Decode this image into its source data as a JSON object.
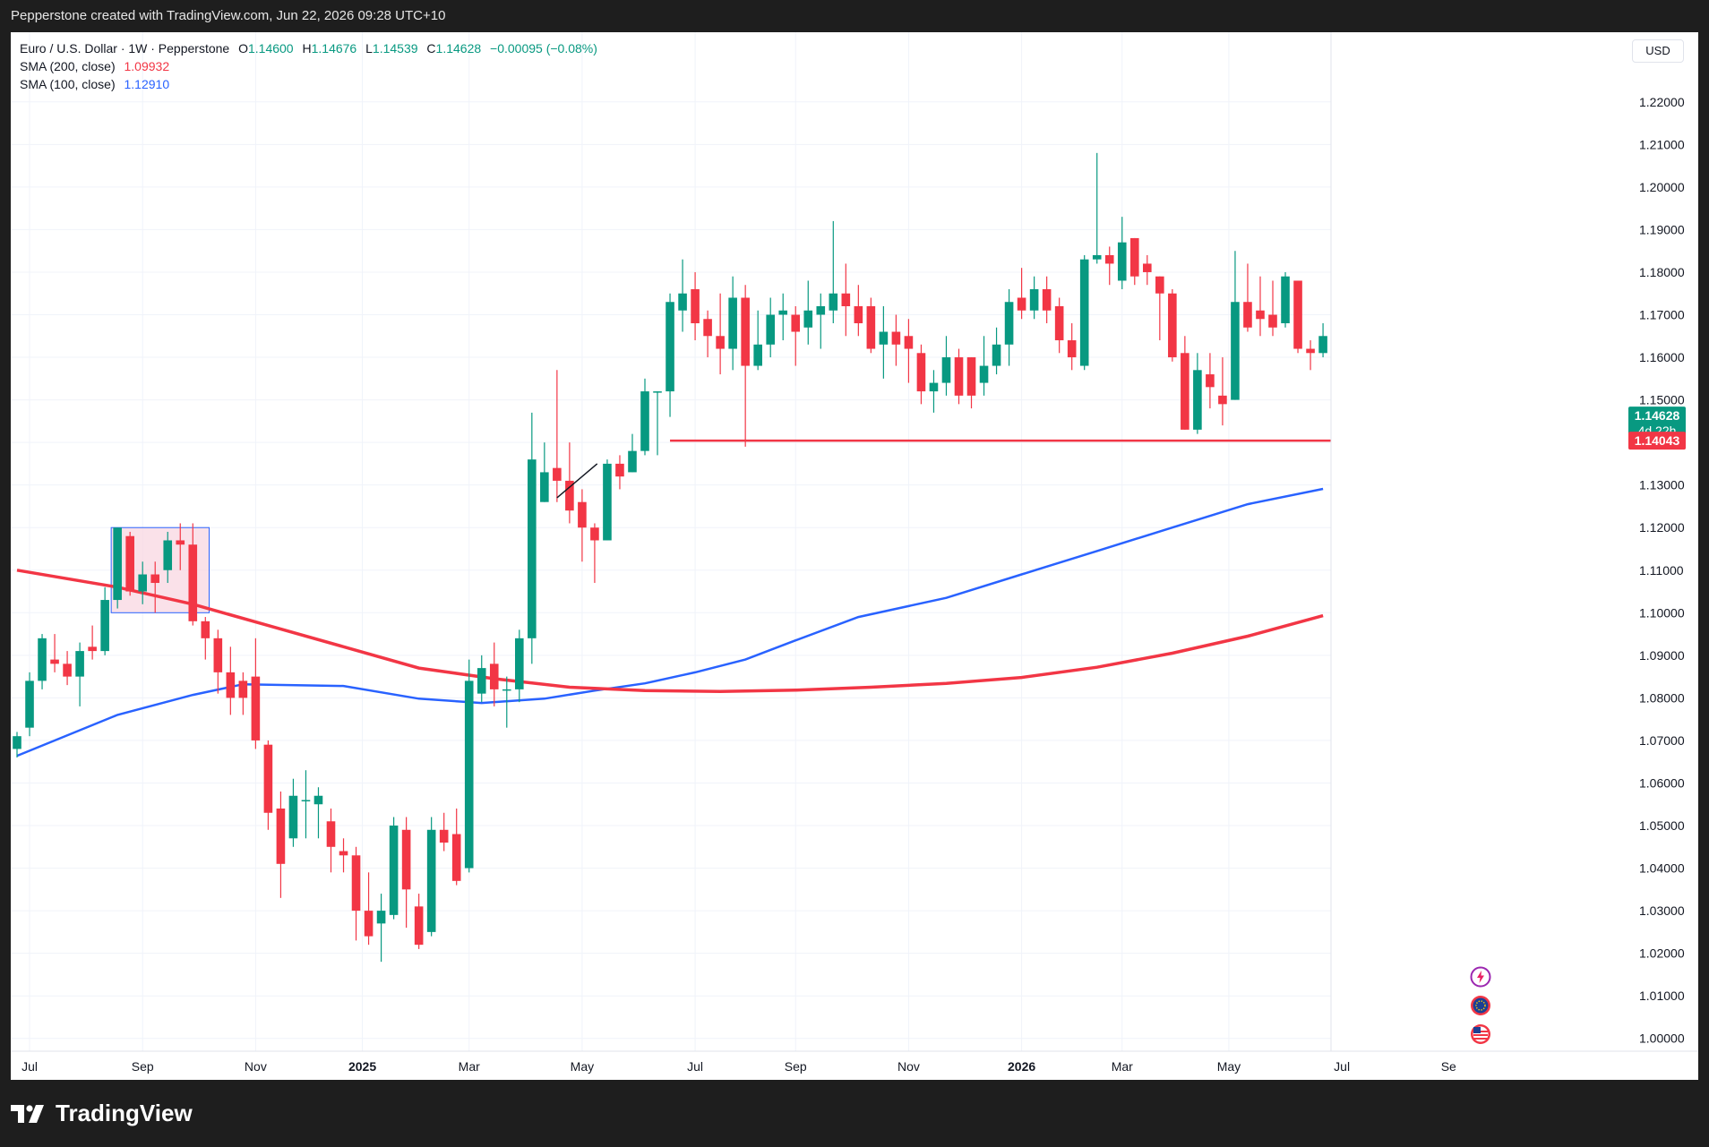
{
  "header": {
    "attribution": "Pepperstone created with TradingView.com, Jun 22, 2026 09:28 UTC+10"
  },
  "brand": {
    "name": "TradingView"
  },
  "legend": {
    "symbol": "Euro / U.S. Dollar · 1W · Pepperstone",
    "ohlc": {
      "o_label": "O",
      "o": "1.14600",
      "h_label": "H",
      "h": "1.14676",
      "l_label": "L",
      "l": "1.14539",
      "c_label": "C",
      "c": "1.14628",
      "change": "−0.00095 (−0.08%)"
    },
    "sma200": {
      "label": "SMA (200, close)",
      "value": "1.09932"
    },
    "sma100": {
      "label": "SMA (100, close)",
      "value": "1.12910"
    }
  },
  "currency": "USD",
  "price_labels": {
    "last": "1.14628",
    "countdown": "4d 22h",
    "level": "1.14043"
  },
  "events": {
    "icons": [
      "flash-event-icon",
      "eu-flag-icon",
      "us-flag-icon"
    ]
  },
  "colors": {
    "up": "#089981",
    "down": "#f23645",
    "sma200": "#f23645",
    "sma100": "#2962ff",
    "hline": "#f23645",
    "box_fill": "#f8d7e1",
    "box_border": "#2962ff",
    "trendline": "#131722"
  },
  "chart_data": {
    "type": "candlestick",
    "timeframe": "1W",
    "ylim": [
      0.997,
      1.229
    ],
    "x_ticks": [
      {
        "label": "Jul",
        "bold": false,
        "time": 1
      },
      {
        "label": "Sep",
        "bold": false,
        "time": 10
      },
      {
        "label": "Nov",
        "bold": false,
        "time": 19
      },
      {
        "label": "2025",
        "bold": true,
        "time": 27.5
      },
      {
        "label": "Mar",
        "bold": false,
        "time": 36
      },
      {
        "label": "May",
        "bold": false,
        "time": 45
      },
      {
        "label": "Jul",
        "bold": false,
        "time": 54
      },
      {
        "label": "Sep",
        "bold": false,
        "time": 62
      },
      {
        "label": "Nov",
        "bold": false,
        "time": 71
      },
      {
        "label": "2026",
        "bold": true,
        "time": 80
      },
      {
        "label": "Mar",
        "bold": false,
        "time": 88
      },
      {
        "label": "May",
        "bold": false,
        "time": 96.5
      },
      {
        "label": "Jul",
        "bold": false,
        "time": 105.5
      },
      {
        "label": "Se",
        "bold": false,
        "time": 114
      }
    ],
    "y_ticks": [
      "1.22000",
      "1.21000",
      "1.20000",
      "1.19000",
      "1.18000",
      "1.17000",
      "1.16000",
      "1.15000",
      "1.14000",
      "1.13000",
      "1.12000",
      "1.11000",
      "1.10000",
      "1.09000",
      "1.08000",
      "1.07000",
      "1.06000",
      "1.05000",
      "1.04000",
      "1.03000",
      "1.02000",
      "1.01000",
      "1.00000"
    ],
    "candles": [
      [
        1.068,
        1.071,
        1.066,
        1.072
      ],
      [
        1.073,
        1.084,
        1.071,
        1.086
      ],
      [
        1.084,
        1.094,
        1.082,
        1.095
      ],
      [
        1.089,
        1.088,
        1.086,
        1.095
      ],
      [
        1.088,
        1.085,
        1.083,
        1.091
      ],
      [
        1.085,
        1.091,
        1.078,
        1.093
      ],
      [
        1.092,
        1.091,
        1.089,
        1.097
      ],
      [
        1.091,
        1.103,
        1.09,
        1.106
      ],
      [
        1.103,
        1.12,
        1.101,
        1.12
      ],
      [
        1.118,
        1.105,
        1.104,
        1.119
      ],
      [
        1.105,
        1.109,
        1.102,
        1.112
      ],
      [
        1.109,
        1.107,
        1.1,
        1.112
      ],
      [
        1.11,
        1.117,
        1.107,
        1.119
      ],
      [
        1.117,
        1.116,
        1.11,
        1.121
      ],
      [
        1.116,
        1.098,
        1.097,
        1.121
      ],
      [
        1.098,
        1.094,
        1.089,
        1.099
      ],
      [
        1.094,
        1.086,
        1.081,
        1.096
      ],
      [
        1.086,
        1.08,
        1.076,
        1.092
      ],
      [
        1.084,
        1.08,
        1.076,
        1.086
      ],
      [
        1.085,
        1.07,
        1.068,
        1.094
      ],
      [
        1.069,
        1.053,
        1.049,
        1.07
      ],
      [
        1.054,
        1.041,
        1.033,
        1.058
      ],
      [
        1.047,
        1.057,
        1.045,
        1.061
      ],
      [
        1.056,
        1.056,
        1.047,
        1.063
      ],
      [
        1.055,
        1.057,
        1.047,
        1.059
      ],
      [
        1.051,
        1.045,
        1.039,
        1.054
      ],
      [
        1.044,
        1.043,
        1.039,
        1.047
      ],
      [
        1.043,
        1.03,
        1.023,
        1.045
      ],
      [
        1.03,
        1.024,
        1.022,
        1.039
      ],
      [
        1.027,
        1.03,
        1.018,
        1.034
      ],
      [
        1.029,
        1.05,
        1.028,
        1.052
      ],
      [
        1.049,
        1.035,
        1.026,
        1.052
      ],
      [
        1.031,
        1.022,
        1.021,
        1.034
      ],
      [
        1.025,
        1.049,
        1.024,
        1.052
      ],
      [
        1.049,
        1.046,
        1.044,
        1.053
      ],
      [
        1.048,
        1.037,
        1.036,
        1.054
      ],
      [
        1.04,
        1.084,
        1.039,
        1.089
      ],
      [
        1.081,
        1.087,
        1.079,
        1.09
      ],
      [
        1.088,
        1.082,
        1.078,
        1.093
      ],
      [
        1.082,
        1.082,
        1.073,
        1.085
      ],
      [
        1.082,
        1.094,
        1.079,
        1.096
      ],
      [
        1.094,
        1.136,
        1.088,
        1.147
      ],
      [
        1.126,
        1.133,
        1.126,
        1.14
      ],
      [
        1.134,
        1.131,
        1.126,
        1.157
      ],
      [
        1.131,
        1.124,
        1.121,
        1.14
      ],
      [
        1.126,
        1.12,
        1.112,
        1.129
      ],
      [
        1.12,
        1.117,
        1.107,
        1.121
      ],
      [
        1.117,
        1.135,
        1.117,
        1.136
      ],
      [
        1.135,
        1.132,
        1.129,
        1.137
      ],
      [
        1.133,
        1.138,
        1.133,
        1.142
      ],
      [
        1.138,
        1.152,
        1.137,
        1.155
      ],
      [
        1.152,
        1.152,
        1.137,
        1.152
      ],
      [
        1.152,
        1.173,
        1.146,
        1.175
      ],
      [
        1.171,
        1.175,
        1.166,
        1.183
      ],
      [
        1.176,
        1.168,
        1.164,
        1.18
      ],
      [
        1.169,
        1.165,
        1.16,
        1.171
      ],
      [
        1.165,
        1.162,
        1.156,
        1.175
      ],
      [
        1.162,
        1.174,
        1.157,
        1.179
      ],
      [
        1.174,
        1.158,
        1.139,
        1.177
      ],
      [
        1.158,
        1.163,
        1.157,
        1.171
      ],
      [
        1.163,
        1.17,
        1.16,
        1.174
      ],
      [
        1.17,
        1.171,
        1.164,
        1.175
      ],
      [
        1.17,
        1.166,
        1.158,
        1.172
      ],
      [
        1.167,
        1.171,
        1.163,
        1.178
      ],
      [
        1.17,
        1.172,
        1.162,
        1.175
      ],
      [
        1.171,
        1.175,
        1.168,
        1.192
      ],
      [
        1.175,
        1.172,
        1.165,
        1.182
      ],
      [
        1.172,
        1.168,
        1.165,
        1.177
      ],
      [
        1.172,
        1.162,
        1.161,
        1.174
      ],
      [
        1.163,
        1.166,
        1.155,
        1.172
      ],
      [
        1.166,
        1.163,
        1.158,
        1.17
      ],
      [
        1.165,
        1.162,
        1.154,
        1.169
      ],
      [
        1.161,
        1.152,
        1.149,
        1.163
      ],
      [
        1.152,
        1.154,
        1.147,
        1.157
      ],
      [
        1.154,
        1.16,
        1.151,
        1.165
      ],
      [
        1.16,
        1.151,
        1.149,
        1.162
      ],
      [
        1.16,
        1.151,
        1.148,
        1.16
      ],
      [
        1.154,
        1.158,
        1.151,
        1.165
      ],
      [
        1.158,
        1.163,
        1.156,
        1.167
      ],
      [
        1.163,
        1.173,
        1.158,
        1.176
      ],
      [
        1.174,
        1.171,
        1.169,
        1.181
      ],
      [
        1.171,
        1.176,
        1.169,
        1.179
      ],
      [
        1.176,
        1.171,
        1.168,
        1.179
      ],
      [
        1.172,
        1.164,
        1.161,
        1.174
      ],
      [
        1.164,
        1.16,
        1.157,
        1.168
      ],
      [
        1.158,
        1.183,
        1.157,
        1.184
      ],
      [
        1.183,
        1.184,
        1.182,
        1.208
      ],
      [
        1.184,
        1.182,
        1.177,
        1.186
      ],
      [
        1.178,
        1.187,
        1.176,
        1.193
      ],
      [
        1.188,
        1.179,
        1.177,
        1.188
      ],
      [
        1.182,
        1.18,
        1.177,
        1.184
      ],
      [
        1.179,
        1.175,
        1.164,
        1.179
      ],
      [
        1.175,
        1.16,
        1.159,
        1.176
      ],
      [
        1.161,
        1.143,
        1.143,
        1.165
      ],
      [
        1.143,
        1.157,
        1.142,
        1.161
      ],
      [
        1.156,
        1.153,
        1.148,
        1.161
      ],
      [
        1.151,
        1.149,
        1.144,
        1.16
      ],
      [
        1.15,
        1.173,
        1.15,
        1.185
      ],
      [
        1.173,
        1.167,
        1.166,
        1.182
      ],
      [
        1.171,
        1.169,
        1.165,
        1.179
      ],
      [
        1.17,
        1.167,
        1.165,
        1.178
      ],
      [
        1.168,
        1.179,
        1.167,
        1.18
      ],
      [
        1.178,
        1.162,
        1.161,
        1.178
      ],
      [
        1.162,
        1.161,
        1.157,
        1.164
      ],
      [
        1.161,
        1.165,
        1.16,
        1.168
      ],
      [
        1.165,
        1.153,
        1.152,
        1.166
      ],
      [
        1.152,
        1.157,
        1.152,
        1.159
      ],
      [
        1.157,
        1.147,
        1.142,
        1.162
      ],
      [
        1.146,
        1.1463,
        1.1454,
        1.1468
      ]
    ],
    "sma200_points": [
      [
        0,
        1.11
      ],
      [
        8,
        1.106
      ],
      [
        14,
        1.102
      ],
      [
        20,
        1.097
      ],
      [
        26,
        1.092
      ],
      [
        32,
        1.087
      ],
      [
        38,
        1.0845
      ],
      [
        44,
        1.0825
      ],
      [
        50,
        1.0817
      ],
      [
        56,
        1.0815
      ],
      [
        62,
        1.0818
      ],
      [
        68,
        1.0825
      ],
      [
        74,
        1.0834
      ],
      [
        80,
        1.0848
      ],
      [
        86,
        1.0872
      ],
      [
        92,
        1.0905
      ],
      [
        98,
        1.0945
      ],
      [
        104,
        1.0993
      ]
    ],
    "sma100_points": [
      [
        0,
        1.0664
      ],
      [
        8,
        1.076
      ],
      [
        14,
        1.0807
      ],
      [
        18,
        1.0832
      ],
      [
        26,
        1.0828
      ],
      [
        32,
        1.0798
      ],
      [
        37,
        1.0788
      ],
      [
        42,
        1.0798
      ],
      [
        46,
        1.0817
      ],
      [
        50,
        1.0834
      ],
      [
        54,
        1.086
      ],
      [
        58,
        1.089
      ],
      [
        62,
        1.0935
      ],
      [
        67,
        1.099
      ],
      [
        74,
        1.1035
      ],
      [
        80,
        1.109
      ],
      [
        86,
        1.1145
      ],
      [
        92,
        1.12
      ],
      [
        98,
        1.1255
      ],
      [
        104,
        1.1291
      ]
    ],
    "horizontal_line": 1.14043,
    "hline_start": 52,
    "range_box": {
      "t1": 7.5,
      "t2": 15.3,
      "top": 1.12,
      "bottom": 1.1
    },
    "trendline": {
      "t1": 43,
      "v1": 1.127,
      "t2": 46.2,
      "v2": 1.135
    }
  }
}
